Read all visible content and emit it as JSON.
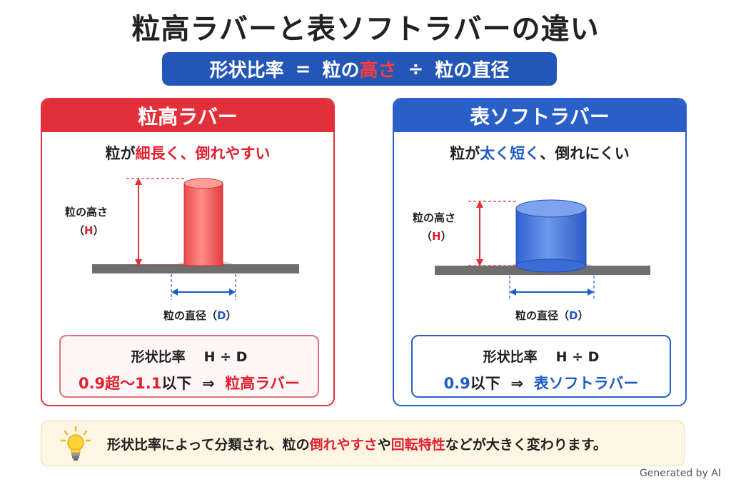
{
  "title": "粒高ラバーと表ソフトラバーの違い",
  "formula": {
    "part1": "形状比率",
    "equals": "=",
    "part2": "粒の",
    "part3": "高さ",
    "divide": "÷",
    "part4": "粒の",
    "part5": "直径"
  },
  "left": {
    "header": "粒高ラバー",
    "desc_pre": "粒が",
    "desc_hl": "細長く、倒れやすい",
    "height_label_1": "粒の高さ",
    "height_label_2a": "（",
    "height_label_2b": "H",
    "height_label_2c": "）",
    "diameter_label_a": "粒の直径（",
    "diameter_label_b": "D",
    "diameter_label_c": "）",
    "ratio_title": "形状比率",
    "ratio_expr": "H ÷ D",
    "ratio_value": "0.9超〜1.1",
    "ratio_suffix": "以下",
    "ratio_arrow": "⇒",
    "ratio_result": "粒高ラバー",
    "accent": "#e2303b"
  },
  "right": {
    "header": "表ソフトラバー",
    "desc_pre": "粒が",
    "desc_hl": "太く短く",
    "desc_post": "、倒れにくい",
    "height_label_1": "粒の高さ",
    "height_label_2a": "（",
    "height_label_2b": "H",
    "height_label_2c": "）",
    "diameter_label_a": "粒の直径（",
    "diameter_label_b": "D",
    "diameter_label_c": "）",
    "ratio_title": "形状比率",
    "ratio_expr": "H ÷ D",
    "ratio_value": "0.9",
    "ratio_suffix": "以下",
    "ratio_arrow": "⇒",
    "ratio_result": "表ソフトラバー",
    "accent": "#2a5fc9"
  },
  "tip": {
    "icon": "lightbulb-icon",
    "t1": "形状比率によって分類され、粒の",
    "t2": "倒れやすさ",
    "t3": "や",
    "t4": "回転特性",
    "t5": "などが大きく変わります。"
  },
  "footer": "Generated by AI"
}
